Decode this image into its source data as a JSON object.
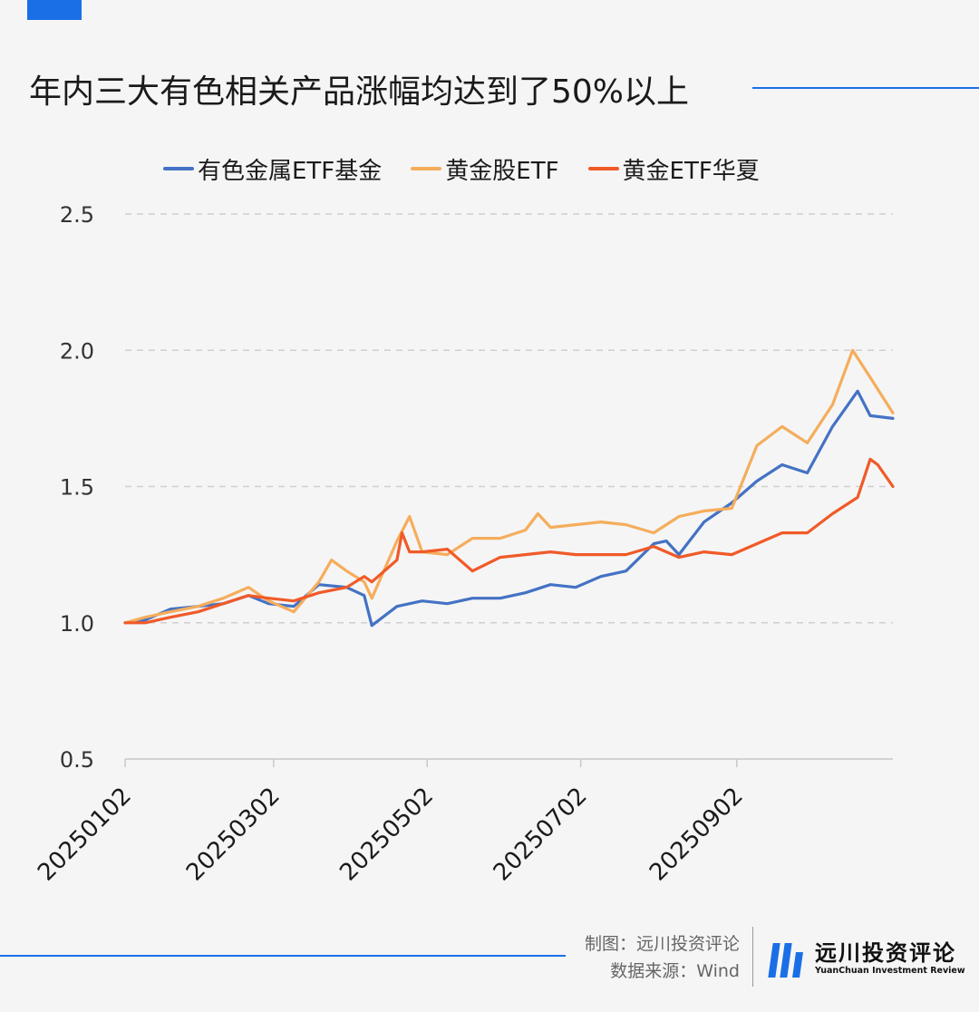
{
  "header": {
    "title": "年内三大有色相关产品涨幅均达到了50%以上"
  },
  "colors": {
    "accent": "#1a6fe6",
    "series_1": "#4472c4",
    "series_2": "#f5ad5c",
    "series_3": "#f05a28"
  },
  "footer": {
    "credit_line1": "制图：远川投资评论",
    "credit_line2": "数据来源：Wind",
    "brand_cn": "远川投资评论",
    "brand_en": "YuanChuan Investment Review"
  },
  "chart_data": {
    "type": "line",
    "title": "",
    "xlabel": "",
    "ylabel": "",
    "ylim": [
      0.5,
      2.5
    ],
    "yticks": [
      "0.5",
      "1.0",
      "1.5",
      "2.0",
      "2.5"
    ],
    "grid": "horizontal dashed",
    "legend_position": "top",
    "x_start": "20250102",
    "x_end": "20251103",
    "xticks": [
      "20250102",
      "20250302",
      "20250502",
      "20250702",
      "20250902"
    ],
    "series": [
      {
        "name": "有色金属ETF基金",
        "color": "#4472c4",
        "points": [
          [
            "20250102",
            1.0
          ],
          [
            "20250110",
            1.01
          ],
          [
            "20250120",
            1.05
          ],
          [
            "20250131",
            1.06
          ],
          [
            "20250210",
            1.07
          ],
          [
            "20250220",
            1.1
          ],
          [
            "20250228",
            1.07
          ],
          [
            "20250310",
            1.06
          ],
          [
            "20250320",
            1.14
          ],
          [
            "20250331",
            1.13
          ],
          [
            "20250407",
            1.1
          ],
          [
            "20250410",
            0.99
          ],
          [
            "20250420",
            1.06
          ],
          [
            "20250430",
            1.08
          ],
          [
            "20250510",
            1.07
          ],
          [
            "20250520",
            1.09
          ],
          [
            "20250531",
            1.09
          ],
          [
            "20250610",
            1.11
          ],
          [
            "20250620",
            1.14
          ],
          [
            "20250630",
            1.13
          ],
          [
            "20250710",
            1.17
          ],
          [
            "20250720",
            1.19
          ],
          [
            "20250731",
            1.29
          ],
          [
            "20250805",
            1.3
          ],
          [
            "20250810",
            1.25
          ],
          [
            "20250820",
            1.37
          ],
          [
            "20250831",
            1.44
          ],
          [
            "20250910",
            1.52
          ],
          [
            "20250920",
            1.58
          ],
          [
            "20250930",
            1.55
          ],
          [
            "20251010",
            1.72
          ],
          [
            "20251020",
            1.85
          ],
          [
            "20251025",
            1.76
          ],
          [
            "20251103",
            1.75
          ]
        ]
      },
      {
        "name": "黄金股ETF",
        "color": "#f5ad5c",
        "points": [
          [
            "20250102",
            1.0
          ],
          [
            "20250110",
            1.02
          ],
          [
            "20250120",
            1.04
          ],
          [
            "20250131",
            1.06
          ],
          [
            "20250210",
            1.09
          ],
          [
            "20250220",
            1.13
          ],
          [
            "20250228",
            1.08
          ],
          [
            "20250310",
            1.04
          ],
          [
            "20250320",
            1.15
          ],
          [
            "20250325",
            1.23
          ],
          [
            "20250331",
            1.19
          ],
          [
            "20250407",
            1.15
          ],
          [
            "20250410",
            1.09
          ],
          [
            "20250420",
            1.3
          ],
          [
            "20250425",
            1.39
          ],
          [
            "20250430",
            1.26
          ],
          [
            "20250510",
            1.25
          ],
          [
            "20250520",
            1.31
          ],
          [
            "20250531",
            1.31
          ],
          [
            "20250610",
            1.34
          ],
          [
            "20250615",
            1.4
          ],
          [
            "20250620",
            1.35
          ],
          [
            "20250630",
            1.36
          ],
          [
            "20250710",
            1.37
          ],
          [
            "20250720",
            1.36
          ],
          [
            "20250731",
            1.33
          ],
          [
            "20250810",
            1.39
          ],
          [
            "20250820",
            1.41
          ],
          [
            "20250831",
            1.42
          ],
          [
            "20250910",
            1.65
          ],
          [
            "20250920",
            1.72
          ],
          [
            "20250930",
            1.66
          ],
          [
            "20251010",
            1.8
          ],
          [
            "20251018",
            2.0
          ],
          [
            "20251025",
            1.9
          ],
          [
            "20251103",
            1.77
          ]
        ]
      },
      {
        "name": "黄金ETF华夏",
        "color": "#f05a28",
        "points": [
          [
            "20250102",
            1.0
          ],
          [
            "20250110",
            1.0
          ],
          [
            "20250120",
            1.02
          ],
          [
            "20250131",
            1.04
          ],
          [
            "20250210",
            1.07
          ],
          [
            "20250220",
            1.1
          ],
          [
            "20250228",
            1.09
          ],
          [
            "20250310",
            1.08
          ],
          [
            "20250320",
            1.11
          ],
          [
            "20250331",
            1.13
          ],
          [
            "20250407",
            1.17
          ],
          [
            "20250410",
            1.15
          ],
          [
            "20250420",
            1.23
          ],
          [
            "20250422",
            1.33
          ],
          [
            "20250425",
            1.26
          ],
          [
            "20250430",
            1.26
          ],
          [
            "20250510",
            1.27
          ],
          [
            "20250520",
            1.19
          ],
          [
            "20250531",
            1.24
          ],
          [
            "20250610",
            1.25
          ],
          [
            "20250620",
            1.26
          ],
          [
            "20250630",
            1.25
          ],
          [
            "20250710",
            1.25
          ],
          [
            "20250720",
            1.25
          ],
          [
            "20250731",
            1.28
          ],
          [
            "20250810",
            1.24
          ],
          [
            "20250820",
            1.26
          ],
          [
            "20250831",
            1.25
          ],
          [
            "20250910",
            1.29
          ],
          [
            "20250920",
            1.33
          ],
          [
            "20250930",
            1.33
          ],
          [
            "20251010",
            1.4
          ],
          [
            "20251020",
            1.46
          ],
          [
            "20251025",
            1.6
          ],
          [
            "20251028",
            1.58
          ],
          [
            "20251103",
            1.5
          ]
        ]
      }
    ]
  }
}
